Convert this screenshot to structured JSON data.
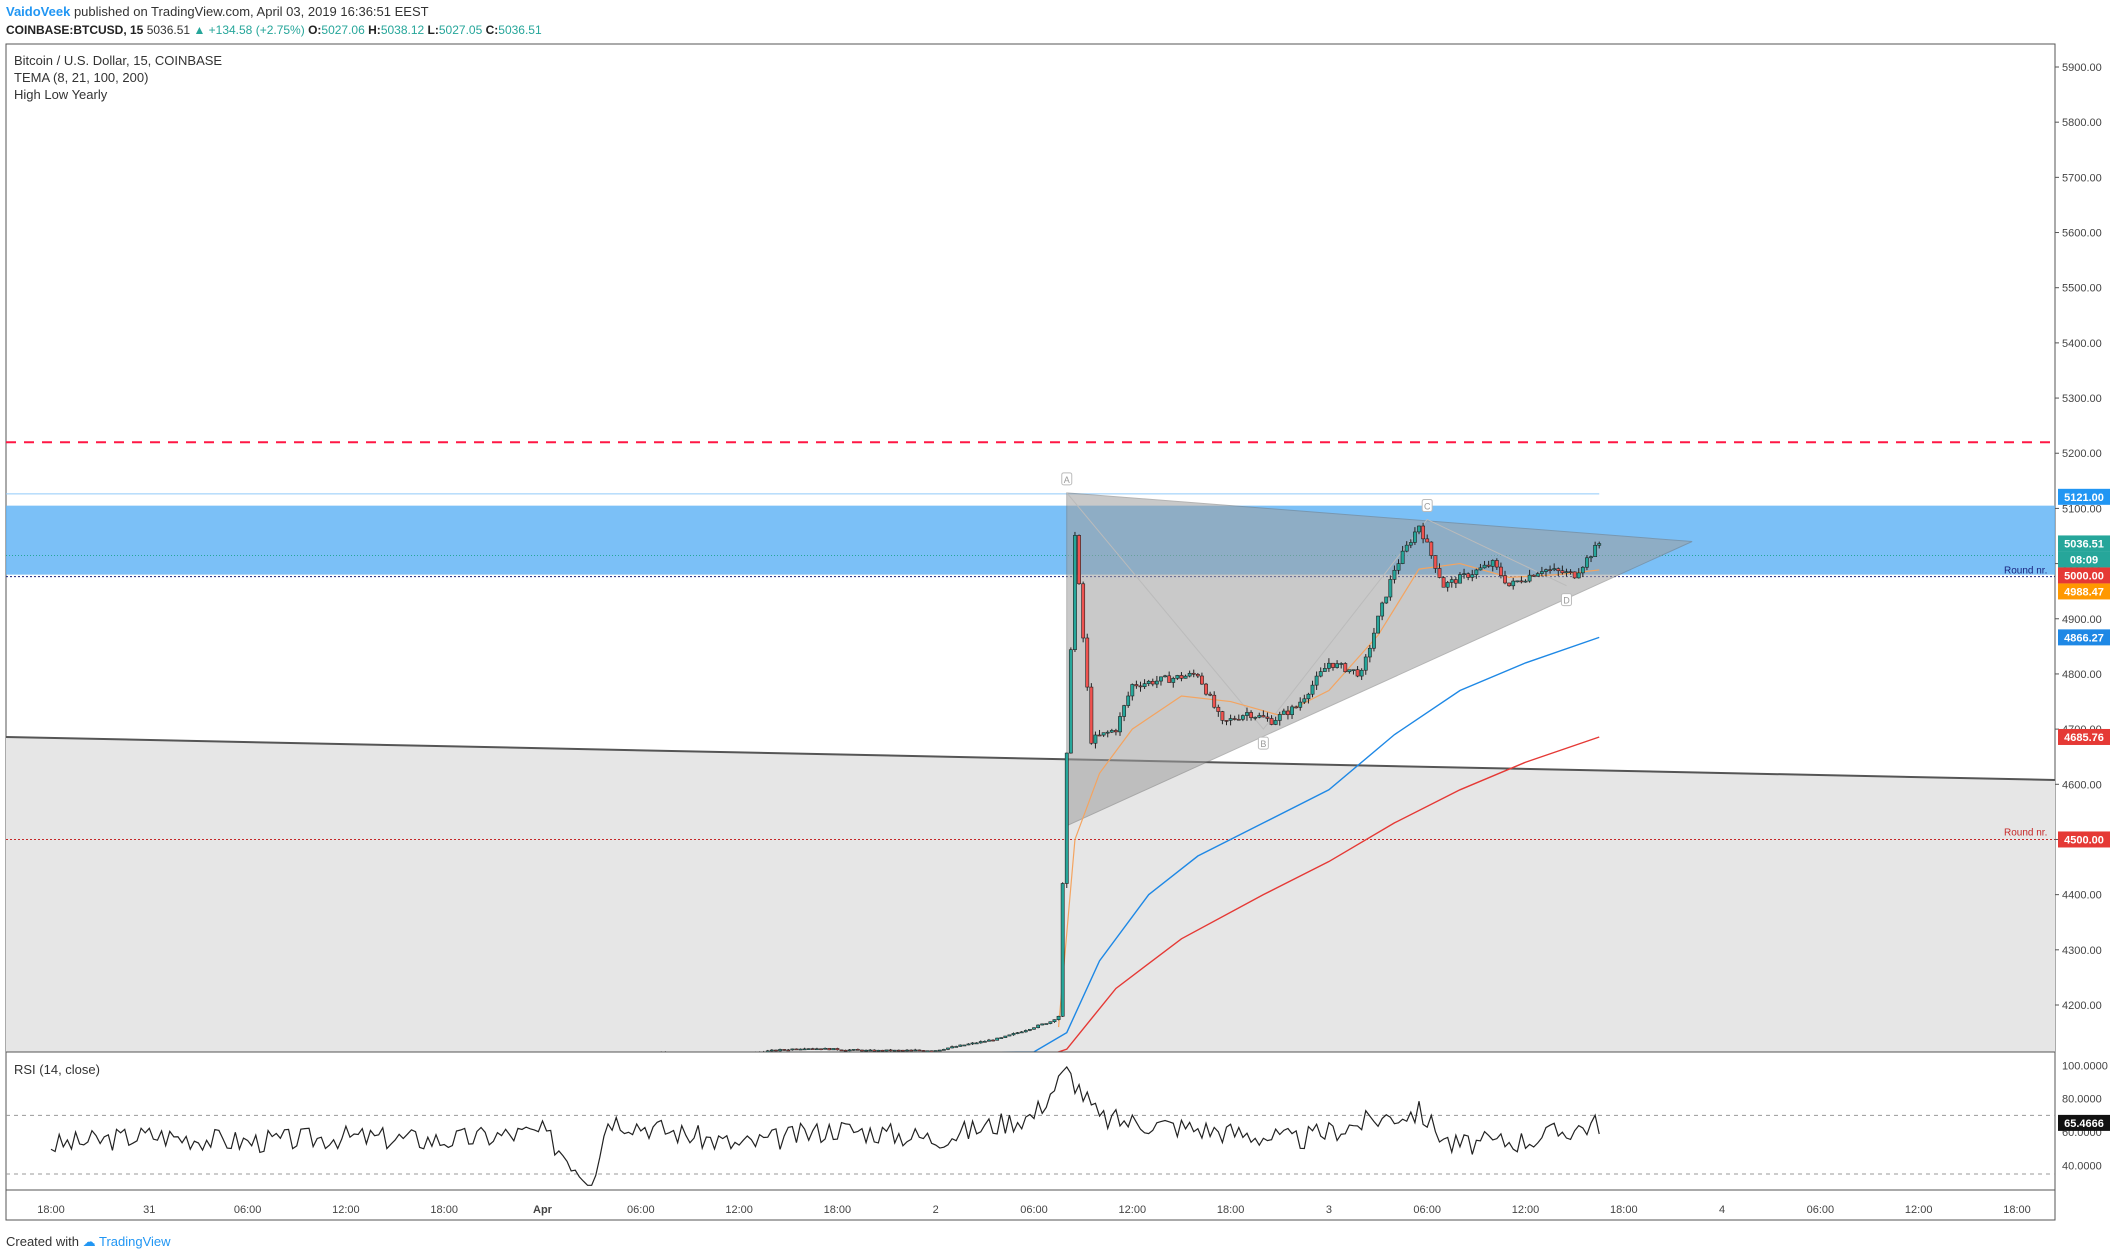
{
  "header": {
    "author": "VaidoVeek",
    "published": "published on TradingView.com, April 03, 2019 16:36:51 EEST"
  },
  "infobar": {
    "symbol": "COINBASE:BTCUSD, 15",
    "last": "5036.51",
    "change": "▲ +134.58 (+2.75%)",
    "o_label": "O:",
    "o": "5027.06",
    "h_label": "H:",
    "h": "5038.12",
    "l_label": "L:",
    "l": "5027.05",
    "c_label": "C:",
    "c": "5036.51"
  },
  "legend": {
    "title": "Bitcoin / U.S. Dollar, 15, COINBASE",
    "indicator1": "TEMA (8, 21, 100, 200)",
    "indicator2": "High Low Yearly"
  },
  "rsi": {
    "label": "RSI (14, close)",
    "axis_labels": [
      "100.0000",
      "80.0000",
      "60.0000",
      "40.0000"
    ],
    "current_badge": "65.4666"
  },
  "footer": {
    "created_with": "Created with",
    "brand": "TradingView"
  },
  "colors": {
    "up_candle": "#26a69a",
    "down_candle": "#ef5350",
    "resistance_zone": "#64b5f6",
    "tema_orange": "#ff9800",
    "tema_blue": "#1e88e5",
    "tema_red": "#e53935",
    "dashed_red": "#ff1744",
    "triangle_fill": "#9e9e9e"
  },
  "chart_data": {
    "type": "line",
    "title": "Bitcoin / U.S. Dollar, 15, COINBASE",
    "xlabel": "",
    "ylabel": "",
    "ylim": [
      4100,
      5950
    ],
    "y_ticks": [
      5900,
      5800,
      5700,
      5600,
      5500,
      5400,
      5300,
      5200,
      5100,
      5000,
      4900,
      4800,
      4700,
      4600,
      4500,
      4400,
      4300,
      4200
    ],
    "x_ticks": [
      "18:00",
      "31",
      "06:00",
      "12:00",
      "18:00",
      "Apr",
      "06:00",
      "12:00",
      "18:00",
      "2",
      "06:00",
      "12:00",
      "18:00",
      "3",
      "06:00",
      "12:00",
      "18:00",
      "4",
      "06:00",
      "12:00",
      "18:00"
    ],
    "price_badges": [
      {
        "label": "5121.00",
        "value": 5121,
        "color": "#2196f3"
      },
      {
        "label": "5036.51",
        "value": 5036.51,
        "color": "#26a69a"
      },
      {
        "label": "08:09",
        "value": 5008,
        "color": "#26a69a"
      },
      {
        "label": "5000.00",
        "value": 5000,
        "color": "#e53935"
      },
      {
        "label": "4988.47",
        "value": 4988.47,
        "color": "#ff9800"
      },
      {
        "label": "4866.27",
        "value": 4866.27,
        "color": "#1e88e5"
      },
      {
        "label": "4685.76",
        "value": 4685.76,
        "color": "#e53935"
      },
      {
        "label": "4500.00",
        "value": 4500,
        "color": "#e53935"
      }
    ],
    "round_nr_label": "Round nr.",
    "levels": {
      "dashed_red": 5220,
      "zone_top": 5105,
      "zone_bottom": 4980,
      "thin_line": 5121,
      "round_5000": 5000,
      "round_4500": 4500
    },
    "pattern_points": [
      "A",
      "B",
      "C",
      "D"
    ],
    "series": [
      {
        "name": "price",
        "points": [
          [
            "31 Mar 03:00",
            4110
          ],
          [
            "31 Mar 06:00",
            4112
          ],
          [
            "31 Mar 12:00",
            4111
          ],
          [
            "31 Mar 18:00",
            4113
          ],
          [
            "1 Apr 00:00",
            4110
          ],
          [
            "1 Apr 06:00",
            4113
          ],
          [
            "1 Apr 12:00",
            4112
          ],
          [
            "1 Apr 16:00",
            4122
          ],
          [
            "1 Apr 20:00",
            4117
          ],
          [
            "2 Apr 00:00",
            4118
          ],
          [
            "2 Apr 04:00",
            4140
          ],
          [
            "2 Apr 07:00",
            4170
          ],
          [
            "2 Apr 07:30",
            4180
          ],
          [
            "2 Apr 08:00",
            4650
          ],
          [
            "2 Apr 08:30",
            5050
          ],
          [
            "2 Apr 09:30",
            4680
          ],
          [
            "2 Apr 11:00",
            4700
          ],
          [
            "2 Apr 12:00",
            4780
          ],
          [
            "2 Apr 14:00",
            4790
          ],
          [
            "2 Apr 16:00",
            4800
          ],
          [
            "2 Apr 17:30",
            4710
          ],
          [
            "2 Apr 19:00",
            4730
          ],
          [
            "2 Apr 20:30",
            4715
          ],
          [
            "2 Apr 22:00",
            4740
          ],
          [
            "3 Apr 00:00",
            4820
          ],
          [
            "3 Apr 02:00",
            4800
          ],
          [
            "3 Apr 03:00",
            4900
          ],
          [
            "3 Apr 04:00",
            4990
          ],
          [
            "3 Apr 05:30",
            5070
          ],
          [
            "3 Apr 07:00",
            4960
          ],
          [
            "3 Apr 08:30",
            4980
          ],
          [
            "3 Apr 10:00",
            5000
          ],
          [
            "3 Apr 11:00",
            4960
          ],
          [
            "3 Apr 13:00",
            4990
          ],
          [
            "3 Apr 15:00",
            4980
          ],
          [
            "3 Apr 16:30",
            5036.51
          ]
        ]
      },
      {
        "name": "TEMA 8",
        "points": [
          [
            "2 Apr 07:30",
            4160
          ],
          [
            "2 Apr 08:30",
            4500
          ],
          [
            "2 Apr 10:00",
            4620
          ],
          [
            "2 Apr 12:00",
            4700
          ],
          [
            "2 Apr 15:00",
            4760
          ],
          [
            "2 Apr 18:00",
            4750
          ],
          [
            "2 Apr 21:00",
            4725
          ],
          [
            "3 Apr 00:00",
            4770
          ],
          [
            "3 Apr 03:00",
            4870
          ],
          [
            "3 Apr 05:30",
            4990
          ],
          [
            "3 Apr 08:00",
            5000
          ],
          [
            "3 Apr 11:00",
            4975
          ],
          [
            "3 Apr 14:00",
            4980
          ],
          [
            "3 Apr 16:30",
            4988.47
          ]
        ]
      },
      {
        "name": "TEMA 100",
        "points": [
          [
            "31 Mar 03:00",
            4103
          ],
          [
            "2 Apr 06:00",
            4115
          ],
          [
            "2 Apr 08:00",
            4150
          ],
          [
            "2 Apr 10:00",
            4280
          ],
          [
            "2 Apr 13:00",
            4400
          ],
          [
            "2 Apr 16:00",
            4470
          ],
          [
            "2 Apr 20:00",
            4530
          ],
          [
            "3 Apr 00:00",
            4590
          ],
          [
            "3 Apr 04:00",
            4690
          ],
          [
            "3 Apr 08:00",
            4770
          ],
          [
            "3 Apr 12:00",
            4820
          ],
          [
            "3 Apr 16:30",
            4866.27
          ]
        ]
      },
      {
        "name": "TEMA 200",
        "points": [
          [
            "2 Apr 06:00",
            4100
          ],
          [
            "2 Apr 08:00",
            4120
          ],
          [
            "2 Apr 11:00",
            4230
          ],
          [
            "2 Apr 15:00",
            4320
          ],
          [
            "2 Apr 20:00",
            4400
          ],
          [
            "3 Apr 00:00",
            4460
          ],
          [
            "3 Apr 04:00",
            4530
          ],
          [
            "3 Apr 08:00",
            4590
          ],
          [
            "3 Apr 12:00",
            4640
          ],
          [
            "3 Apr 16:30",
            4685.76
          ]
        ]
      },
      {
        "name": "RSI",
        "points": [
          [
            "30 Mar 18:00",
            52
          ],
          [
            "31 Mar 00:00",
            58
          ],
          [
            "31 Mar 06:00",
            54
          ],
          [
            "31 Mar 12:00",
            57
          ],
          [
            "31 Mar 18:00",
            55
          ],
          [
            "1 Apr 00:00",
            60
          ],
          [
            "1 Apr 03:00",
            30
          ],
          [
            "1 Apr 04:00",
            68
          ],
          [
            "1 Apr 12:00",
            52
          ],
          [
            "1 Apr 18:00",
            62
          ],
          [
            "2 Apr 00:00",
            56
          ],
          [
            "2 Apr 06:00",
            70
          ],
          [
            "2 Apr 08:00",
            97
          ],
          [
            "2 Apr 10:00",
            68
          ],
          [
            "2 Apr 16:00",
            62
          ],
          [
            "2 Apr 22:00",
            55
          ],
          [
            "3 Apr 03:00",
            68
          ],
          [
            "3 Apr 05:30",
            72
          ],
          [
            "3 Apr 07:30",
            52
          ],
          [
            "3 Apr 12:00",
            55
          ],
          [
            "3 Apr 16:30",
            65.4666
          ]
        ]
      }
    ]
  }
}
